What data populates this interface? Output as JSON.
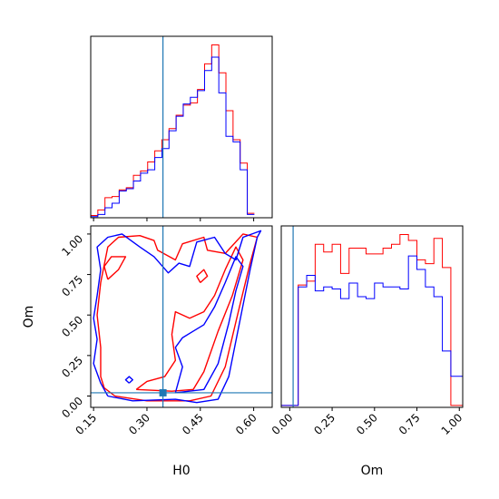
{
  "chart_data": {
    "type": "corner",
    "parameters": [
      "H0",
      "Om"
    ],
    "truth": {
      "H0": 0.345,
      "Om": 0.02
    },
    "colors": {
      "series_red": "#ff0000",
      "series_blue": "#0000ff",
      "truth": "#1f77b4"
    },
    "panels": [
      {
        "id": "H0-marginal",
        "type": "histogram",
        "xlim": [
          0.142,
          0.652
        ],
        "bin_edges": [
          0.142,
          0.162,
          0.182,
          0.202,
          0.222,
          0.242,
          0.262,
          0.282,
          0.302,
          0.322,
          0.342,
          0.362,
          0.382,
          0.402,
          0.422,
          0.442,
          0.462,
          0.482,
          0.502,
          0.522,
          0.542,
          0.562,
          0.582,
          0.602
        ],
        "series": [
          {
            "color": "red",
            "counts": [
              2,
              7,
              18,
              19,
              25,
              27,
              38,
              42,
              50,
              60,
              70,
              80,
              92,
              101,
              103,
              115,
              138,
              155,
              130,
              96,
              70,
              49,
              4
            ]
          },
          {
            "color": "blue",
            "counts": [
              1,
              3,
              9,
              13,
              24,
              26,
              33,
              40,
              43,
              54,
              62,
              78,
              91,
              102,
              108,
              114,
              132,
              144,
              112,
              73,
              68,
              43,
              3
            ]
          }
        ]
      },
      {
        "id": "Om-marginal",
        "type": "histogram",
        "xlim": [
          -0.05,
          1.02
        ],
        "xticks": [
          "0.00",
          "0.25",
          "0.50",
          "0.75",
          "1.00"
        ],
        "xlabel": "Om",
        "bin_edges": [
          -0.05,
          0.0,
          0.05,
          0.1,
          0.15,
          0.2,
          0.25,
          0.3,
          0.35,
          0.4,
          0.45,
          0.5,
          0.55,
          0.6,
          0.65,
          0.7,
          0.75,
          0.8,
          0.85,
          0.9,
          0.95,
          1.0,
          1.02
        ],
        "series": [
          {
            "color": "red",
            "counts": [
              1,
              1,
              63,
              65,
              84,
              80,
              84,
              69,
              82,
              82,
              79,
              79,
              82,
              84,
              89,
              86,
              76,
              74,
              87,
              72,
              1,
              1
            ]
          },
          {
            "color": "blue",
            "counts": [
              1,
              1,
              62,
              68,
              60,
              62,
              61,
              56,
              64,
              57,
              56,
              64,
              62,
              62,
              61,
              78,
              71,
              62,
              57,
              29,
              16,
              16
            ]
          }
        ]
      },
      {
        "id": "H0-Om-2d",
        "type": "contour",
        "xlim": [
          0.142,
          0.652
        ],
        "ylim": [
          -0.07,
          1.05
        ],
        "xticks": [
          "0.15",
          "0.30",
          "0.45",
          "0.60"
        ],
        "yticks": [
          "0.00",
          "0.25",
          "0.50",
          "0.75",
          "1.00"
        ],
        "xlabel": "H0",
        "ylabel": "Om",
        "truth_marker": {
          "x": 0.345,
          "y": 0.02
        },
        "series": [
          {
            "color": "red",
            "contours": [
              [
                [
                  0.21,
                  0.0
                ],
                [
                  0.3,
                  -0.03
                ],
                [
                  0.42,
                  -0.03
                ],
                [
                  0.48,
                  0.0
                ],
                [
                  0.52,
                  0.18
                ],
                [
                  0.56,
                  0.55
                ],
                [
                  0.59,
                  0.82
                ],
                [
                  0.61,
                  0.98
                ],
                [
                  0.57,
                  1.0
                ],
                [
                  0.52,
                  0.88
                ],
                [
                  0.47,
                  0.9
                ],
                [
                  0.46,
                  0.98
                ],
                [
                  0.4,
                  0.94
                ],
                [
                  0.38,
                  0.84
                ],
                [
                  0.33,
                  0.9
                ],
                [
                  0.32,
                  0.96
                ],
                [
                  0.28,
                  0.99
                ],
                [
                  0.22,
                  0.98
                ],
                [
                  0.19,
                  0.92
                ],
                [
                  0.17,
                  0.7
                ],
                [
                  0.16,
                  0.5
                ],
                [
                  0.17,
                  0.3
                ],
                [
                  0.17,
                  0.12
                ],
                [
                  0.18,
                  0.05
                ],
                [
                  0.21,
                  0.0
                ]
              ],
              [
                [
                  0.27,
                  0.04
                ],
                [
                  0.37,
                  0.03
                ],
                [
                  0.43,
                  0.04
                ],
                [
                  0.46,
                  0.15
                ],
                [
                  0.5,
                  0.4
                ],
                [
                  0.54,
                  0.62
                ],
                [
                  0.57,
                  0.84
                ],
                [
                  0.55,
                  0.92
                ],
                [
                  0.52,
                  0.78
                ],
                [
                  0.49,
                  0.62
                ],
                [
                  0.46,
                  0.52
                ],
                [
                  0.42,
                  0.48
                ],
                [
                  0.38,
                  0.52
                ],
                [
                  0.37,
                  0.38
                ],
                [
                  0.38,
                  0.22
                ],
                [
                  0.35,
                  0.12
                ],
                [
                  0.3,
                  0.09
                ],
                [
                  0.27,
                  0.04
                ]
              ],
              [
                [
                  0.19,
                  0.72
                ],
                [
                  0.22,
                  0.78
                ],
                [
                  0.24,
                  0.86
                ],
                [
                  0.2,
                  0.86
                ],
                [
                  0.18,
                  0.8
                ],
                [
                  0.19,
                  0.72
                ]
              ],
              [
                [
                  0.45,
                  0.7
                ],
                [
                  0.47,
                  0.74
                ],
                [
                  0.46,
                  0.78
                ],
                [
                  0.44,
                  0.74
                ],
                [
                  0.45,
                  0.7
                ]
              ]
            ]
          },
          {
            "color": "blue",
            "contours": [
              [
                [
                  0.19,
                  0.0
                ],
                [
                  0.26,
                  -0.03
                ],
                [
                  0.38,
                  -0.02
                ],
                [
                  0.44,
                  -0.04
                ],
                [
                  0.5,
                  -0.02
                ],
                [
                  0.53,
                  0.12
                ],
                [
                  0.56,
                  0.45
                ],
                [
                  0.59,
                  0.78
                ],
                [
                  0.61,
                  0.98
                ],
                [
                  0.62,
                  1.02
                ],
                [
                  0.57,
                  0.98
                ],
                [
                  0.55,
                  0.84
                ],
                [
                  0.52,
                  0.88
                ],
                [
                  0.49,
                  0.98
                ],
                [
                  0.44,
                  0.95
                ],
                [
                  0.42,
                  0.8
                ],
                [
                  0.39,
                  0.82
                ],
                [
                  0.36,
                  0.76
                ],
                [
                  0.32,
                  0.86
                ],
                [
                  0.28,
                  0.92
                ],
                [
                  0.23,
                  1.0
                ],
                [
                  0.19,
                  0.98
                ],
                [
                  0.16,
                  0.92
                ],
                [
                  0.17,
                  0.78
                ],
                [
                  0.16,
                  0.62
                ],
                [
                  0.15,
                  0.48
                ],
                [
                  0.16,
                  0.35
                ],
                [
                  0.15,
                  0.2
                ],
                [
                  0.17,
                  0.08
                ],
                [
                  0.19,
                  0.0
                ]
              ],
              [
                [
                  0.38,
                  0.02
                ],
                [
                  0.46,
                  0.04
                ],
                [
                  0.5,
                  0.2
                ],
                [
                  0.53,
                  0.45
                ],
                [
                  0.55,
                  0.65
                ],
                [
                  0.57,
                  0.8
                ],
                [
                  0.55,
                  0.86
                ],
                [
                  0.52,
                  0.7
                ],
                [
                  0.49,
                  0.55
                ],
                [
                  0.46,
                  0.44
                ],
                [
                  0.43,
                  0.4
                ],
                [
                  0.4,
                  0.36
                ],
                [
                  0.38,
                  0.3
                ],
                [
                  0.4,
                  0.18
                ],
                [
                  0.38,
                  0.02
                ]
              ],
              [
                [
                  0.25,
                  0.08
                ],
                [
                  0.26,
                  0.1
                ],
                [
                  0.25,
                  0.12
                ],
                [
                  0.24,
                  0.1
                ],
                [
                  0.25,
                  0.08
                ]
              ]
            ]
          }
        ]
      }
    ]
  }
}
